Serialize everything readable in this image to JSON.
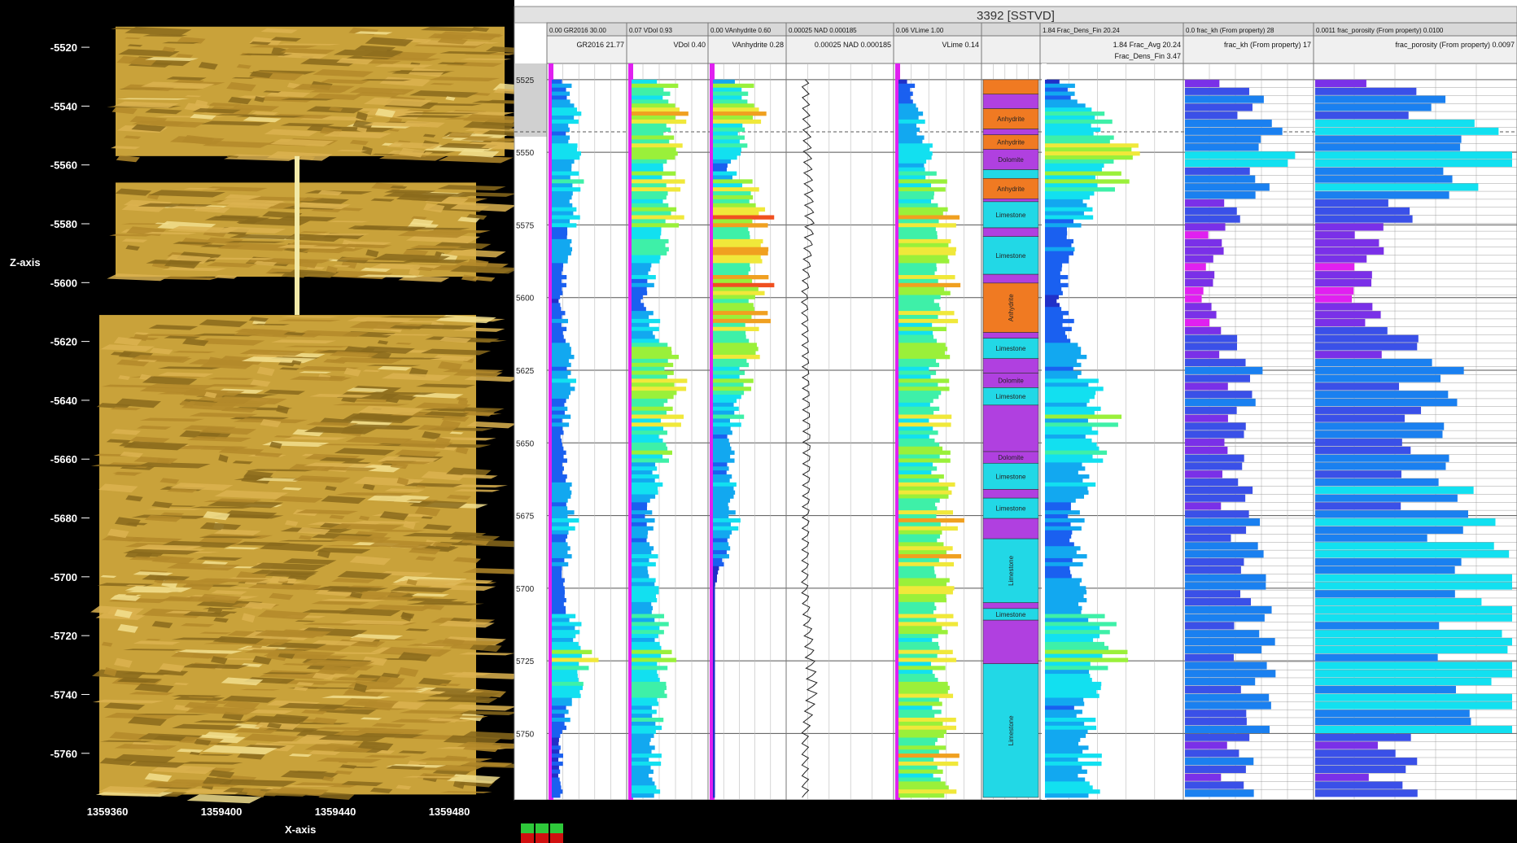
{
  "colors": {
    "background": "#000000",
    "model_fill": "#c9a23a",
    "panel_bg": "#ffffff",
    "header_bg": "#d8d8d8",
    "anhydrite": "#f07a22",
    "dolomite": "#b040e0",
    "limestone": "#22d8e6",
    "cyan": "#12e0f0",
    "magenta": "#e020f0",
    "blue": "#1a60f0"
  },
  "model": {
    "z_axis_label": "Z-axis",
    "x_axis_label": "X-axis",
    "z_ticks": [
      "-5520",
      "-5540",
      "-5560",
      "-5580",
      "-5600",
      "-5620",
      "-5640",
      "-5660",
      "-5680",
      "-5700",
      "-5720",
      "-5740",
      "-5760"
    ],
    "x_ticks": [
      "1359360",
      "1359400",
      "1359440",
      "1359480"
    ],
    "blocks": [
      {
        "z_top": -5513,
        "z_bottom": -5557
      },
      {
        "z_top": -5566,
        "z_bottom": -5598
      },
      {
        "z_top": -5611,
        "z_bottom": -5774
      }
    ]
  },
  "well_panel": {
    "title": "3392 [SSTVD]",
    "depth_ticks": [
      "5525",
      "5550",
      "5575",
      "5600",
      "5625",
      "5650",
      "5675",
      "5700",
      "5725",
      "5750"
    ],
    "tracks": [
      {
        "header1": "0.00  GR2016  30.00",
        "header2": "GR2016 21.77"
      },
      {
        "header1": "0.07  VDol  0.93",
        "header2": "VDol 0.40"
      },
      {
        "header1": "0.00  VAnhydrite  0.60",
        "header2": "VAnhydrite 0.28"
      },
      {
        "header1": "0.00025  NAD  0.000185",
        "header2": "0.00025  NAD  0.000185"
      },
      {
        "header1": "0.06  VLime  1.00",
        "header2": "VLime 0.14"
      },
      {
        "header1": "",
        "header2": ""
      },
      {
        "header1": "1.84  Frac_Dens_Fin  20.24",
        "header2": "1.84  Frac_Avg  20.24",
        "header3": "Frac_Dens_Fin 3.47"
      },
      {
        "header1": "0.0  frac_kh (From property)  28",
        "header2": "frac_kh (From property) 17"
      },
      {
        "header1": "0.0011  frac_porosity (From property)  0.0100",
        "header2": "frac_porosity (From property) 0.0097"
      }
    ],
    "lithology": [
      {
        "top": 5525,
        "bottom": 5530,
        "name": "",
        "type": "anhydrite"
      },
      {
        "top": 5530,
        "bottom": 5535,
        "name": "",
        "type": "dolomite"
      },
      {
        "top": 5535,
        "bottom": 5542,
        "name": "Anhydrite",
        "type": "anhydrite"
      },
      {
        "top": 5542,
        "bottom": 5544,
        "name": "",
        "type": "dolomite"
      },
      {
        "top": 5544,
        "bottom": 5549,
        "name": "Anhydrite",
        "type": "anhydrite"
      },
      {
        "top": 5549,
        "bottom": 5556,
        "name": "Dolomite",
        "type": "dolomite"
      },
      {
        "top": 5556,
        "bottom": 5559,
        "name": "",
        "type": "limestone"
      },
      {
        "top": 5559,
        "bottom": 5566,
        "name": "Anhydrite",
        "type": "anhydrite"
      },
      {
        "top": 5566,
        "bottom": 5567,
        "name": "",
        "type": "dolomite"
      },
      {
        "top": 5567,
        "bottom": 5576,
        "name": "Limestone",
        "type": "limestone"
      },
      {
        "top": 5576,
        "bottom": 5579,
        "name": "",
        "type": "dolomite"
      },
      {
        "top": 5579,
        "bottom": 5592,
        "name": "Limestone",
        "type": "limestone"
      },
      {
        "top": 5592,
        "bottom": 5595,
        "name": "",
        "type": "dolomite"
      },
      {
        "top": 5595,
        "bottom": 5612,
        "name": "Anhydrite",
        "type": "anhydrite"
      },
      {
        "top": 5612,
        "bottom": 5614,
        "name": "",
        "type": "dolomite"
      },
      {
        "top": 5614,
        "bottom": 5621,
        "name": "Limestone",
        "type": "limestone"
      },
      {
        "top": 5621,
        "bottom": 5626,
        "name": "",
        "type": "dolomite"
      },
      {
        "top": 5626,
        "bottom": 5631,
        "name": "Dolomite",
        "type": "dolomite"
      },
      {
        "top": 5631,
        "bottom": 5637,
        "name": "Limestone",
        "type": "limestone"
      },
      {
        "top": 5637,
        "bottom": 5653,
        "name": "",
        "type": "dolomite"
      },
      {
        "top": 5653,
        "bottom": 5657,
        "name": "Dolomite",
        "type": "dolomite"
      },
      {
        "top": 5657,
        "bottom": 5666,
        "name": "Limestone",
        "type": "limestone"
      },
      {
        "top": 5666,
        "bottom": 5669,
        "name": "",
        "type": "dolomite"
      },
      {
        "top": 5669,
        "bottom": 5676,
        "name": "Limestone",
        "type": "limestone"
      },
      {
        "top": 5676,
        "bottom": 5683,
        "name": "",
        "type": "dolomite"
      },
      {
        "top": 5683,
        "bottom": 5705,
        "name": "Limestone",
        "type": "limestone"
      },
      {
        "top": 5705,
        "bottom": 5707,
        "name": "",
        "type": "dolomite"
      },
      {
        "top": 5707,
        "bottom": 5711,
        "name": "Limestone",
        "type": "limestone"
      },
      {
        "top": 5711,
        "bottom": 5726,
        "name": "",
        "type": "dolomite"
      },
      {
        "top": 5726,
        "bottom": 5772,
        "name": "Limestone",
        "type": "limestone"
      }
    ]
  },
  "chart_data": {
    "type": "line",
    "title": "3392 [SSTVD]",
    "depth_range": [
      5520,
      5772
    ],
    "depth_axis_ticks": [
      5525,
      5550,
      5575,
      5600,
      5625,
      5650,
      5675,
      5700,
      5725,
      5750
    ],
    "series": [
      {
        "name": "GR2016",
        "depth": [
          5525,
          5535,
          5545,
          5550,
          5575,
          5600,
          5625,
          5650,
          5675,
          5700,
          5725,
          5750
        ],
        "values": [
          8,
          14,
          10,
          15,
          12,
          5,
          12,
          6,
          12,
          6,
          21,
          5
        ]
      },
      {
        "name": "VDol",
        "depth": [
          5525,
          5535,
          5550,
          5575,
          5600,
          5625,
          5640,
          5650,
          5675,
          5700,
          5725,
          5750
        ],
        "values": [
          0.6,
          0.8,
          0.7,
          0.7,
          0.2,
          0.8,
          0.7,
          0.6,
          0.3,
          0.4,
          0.6,
          0.4
        ]
      },
      {
        "name": "VAnhydrite",
        "depth": [
          5525,
          5535,
          5555,
          5565,
          5600,
          5610,
          5620,
          5650,
          5680,
          5700,
          5725,
          5750
        ],
        "values": [
          0.35,
          0.52,
          0.2,
          0.55,
          0.55,
          0.5,
          0.45,
          0.2,
          0.25,
          0.0,
          0.0,
          0.0
        ]
      },
      {
        "name": "NAD",
        "depth": [
          5525,
          5575,
          5600,
          5650,
          5700,
          5735,
          5750
        ],
        "values": [
          0.0002,
          0.00018,
          0.0002,
          0.00019,
          0.0002,
          0.00017,
          0.0002
        ]
      },
      {
        "name": "VLime",
        "depth": [
          5525,
          5565,
          5575,
          5600,
          5625,
          5650,
          5675,
          5700,
          5725,
          5750
        ],
        "values": [
          0.2,
          0.7,
          0.85,
          0.8,
          0.7,
          0.7,
          0.85,
          0.8,
          0.75,
          0.8
        ]
      },
      {
        "name": "Frac_Dens_Fin",
        "depth": [
          5525,
          5550,
          5575,
          5600,
          5625,
          5640,
          5660,
          5675,
          5700,
          5720,
          5740,
          5760
        ],
        "values": [
          4,
          17,
          6,
          3,
          8,
          12,
          9,
          6,
          7,
          14,
          8,
          9
        ]
      },
      {
        "name": "frac_kh",
        "depth": [
          5525,
          5550,
          5575,
          5600,
          5625,
          5650,
          5675,
          5700,
          5725,
          5750
        ],
        "values": [
          12,
          20,
          8,
          4,
          14,
          10,
          13,
          15,
          16,
          15
        ]
      },
      {
        "name": "frac_porosity",
        "depth": [
          5525,
          5550,
          5575,
          5600,
          5625,
          5650,
          5675,
          5700,
          5725,
          5750
        ],
        "values": [
          0.004,
          0.009,
          0.003,
          0.002,
          0.006,
          0.005,
          0.007,
          0.0085,
          0.009,
          0.0085
        ]
      }
    ]
  }
}
